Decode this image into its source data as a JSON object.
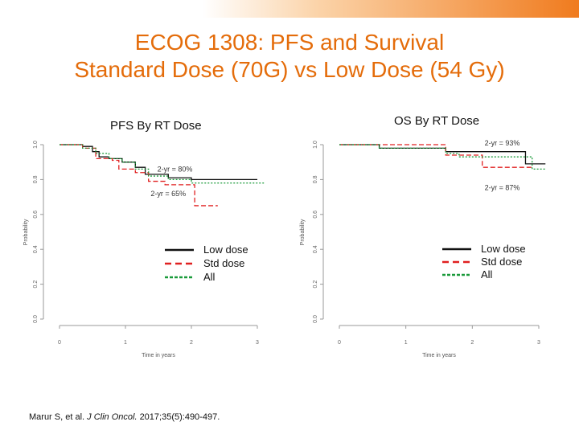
{
  "colors": {
    "title": "#e46c0a",
    "band_start": "#ffffff",
    "band_end": "#f07b1e",
    "low": "#111111",
    "std": "#e02020",
    "all": "#1a9a3a"
  },
  "title": {
    "line1": "ECOG 1308: PFS and Survival",
    "line2": "Standard Dose  (70G) vs Low Dose (54 Gy)"
  },
  "citation": {
    "authors": "Marur S, et al.",
    "journal": "J Clin Oncol.",
    "ref": "2017;35(5):490-497."
  },
  "chart_data": [
    {
      "id": "pfs",
      "type": "line",
      "step": true,
      "title": "PFS By RT Dose",
      "xlabel": "Time in years",
      "ylabel": "Probability",
      "xlim": [
        0,
        3
      ],
      "ylim": [
        0,
        1
      ],
      "xticks": [
        0,
        1,
        2,
        3
      ],
      "yticks": [
        0,
        0.2,
        0.4,
        0.6,
        0.8,
        1.0
      ],
      "ytick_labels": [
        "0.0",
        "0.2",
        "0.4",
        "0.6",
        "0.8",
        "1.0"
      ],
      "series": [
        {
          "name": "Low dose",
          "key": "low",
          "dash": "solid",
          "x": [
            0,
            0.35,
            0.5,
            0.6,
            0.75,
            0.95,
            1.15,
            1.3,
            1.65,
            2.0,
            3.0
          ],
          "y": [
            1.0,
            0.99,
            0.96,
            0.93,
            0.92,
            0.9,
            0.87,
            0.83,
            0.81,
            0.8,
            0.8
          ]
        },
        {
          "name": "Std dose",
          "key": "std",
          "dash": "dashed",
          "x": [
            0,
            0.35,
            0.55,
            0.8,
            0.9,
            1.15,
            1.35,
            1.6,
            2.05,
            2.4
          ],
          "y": [
            1.0,
            0.98,
            0.92,
            0.91,
            0.86,
            0.84,
            0.79,
            0.77,
            0.65,
            0.65
          ]
        },
        {
          "name": "All",
          "key": "all",
          "dash": "dotted",
          "x": [
            0,
            0.35,
            0.55,
            0.75,
            0.95,
            1.15,
            1.35,
            1.65,
            2.0,
            3.1
          ],
          "y": [
            1.0,
            0.98,
            0.95,
            0.92,
            0.9,
            0.86,
            0.82,
            0.8,
            0.78,
            0.78
          ]
        }
      ],
      "annotations": [
        {
          "text": "2-yr = 80%",
          "x": 1.75,
          "y": 0.845
        },
        {
          "text": "2-yr = 65%",
          "x": 1.65,
          "y": 0.705
        }
      ],
      "legend": {
        "items": [
          "Low dose",
          "Std dose",
          "All"
        ],
        "placement": "center-left"
      }
    },
    {
      "id": "os",
      "type": "line",
      "step": true,
      "title": "OS By RT Dose",
      "xlabel": "Time in years",
      "ylabel": "Probability",
      "xlim": [
        0,
        3
      ],
      "ylim": [
        0,
        1
      ],
      "xticks": [
        0,
        1,
        2,
        3
      ],
      "yticks": [
        0,
        0.2,
        0.4,
        0.6,
        0.8,
        1.0
      ],
      "ytick_labels": [
        "0.0",
        "0.2",
        "0.4",
        "0.6",
        "0.8",
        "1.0"
      ],
      "series": [
        {
          "name": "Low dose",
          "key": "low",
          "dash": "solid",
          "x": [
            0,
            0.6,
            1.6,
            2.8,
            3.1
          ],
          "y": [
            1.0,
            0.98,
            0.96,
            0.89,
            0.89
          ]
        },
        {
          "name": "Std dose",
          "key": "std",
          "dash": "dashed",
          "x": [
            0,
            1.6,
            2.15,
            2.9
          ],
          "y": [
            1.0,
            0.94,
            0.87,
            0.87
          ]
        },
        {
          "name": "All",
          "key": "all",
          "dash": "dotted",
          "x": [
            0,
            0.6,
            1.6,
            1.8,
            2.9,
            3.1
          ],
          "y": [
            1.0,
            0.98,
            0.95,
            0.93,
            0.86,
            0.86
          ]
        }
      ],
      "annotations": [
        {
          "text": "2-yr = 93%",
          "x": 2.45,
          "y": 0.995
        },
        {
          "text": "2-yr = 87%",
          "x": 2.45,
          "y": 0.74
        }
      ],
      "legend": {
        "items": [
          "Low dose",
          "Std dose",
          "All"
        ],
        "placement": "center"
      }
    }
  ]
}
